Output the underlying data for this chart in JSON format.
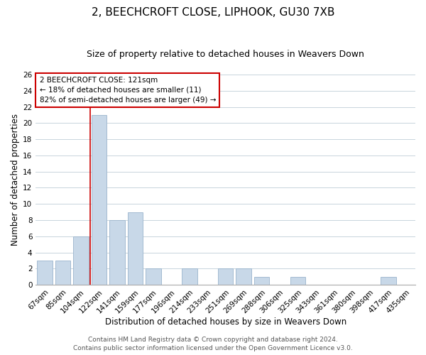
{
  "title": "2, BEECHCROFT CLOSE, LIPHOOK, GU30 7XB",
  "subtitle": "Size of property relative to detached houses in Weavers Down",
  "xlabel": "Distribution of detached houses by size in Weavers Down",
  "ylabel": "Number of detached properties",
  "bar_fill_color": "#c8d8e8",
  "bar_edge_color": "#9ab4cc",
  "bins": [
    "67sqm",
    "85sqm",
    "104sqm",
    "122sqm",
    "141sqm",
    "159sqm",
    "177sqm",
    "196sqm",
    "214sqm",
    "233sqm",
    "251sqm",
    "269sqm",
    "288sqm",
    "306sqm",
    "325sqm",
    "343sqm",
    "361sqm",
    "380sqm",
    "398sqm",
    "417sqm",
    "435sqm"
  ],
  "values": [
    3,
    3,
    6,
    21,
    8,
    9,
    2,
    0,
    2,
    0,
    2,
    2,
    1,
    0,
    1,
    0,
    0,
    0,
    0,
    1,
    0
  ],
  "ylim": [
    0,
    26
  ],
  "yticks": [
    0,
    2,
    4,
    6,
    8,
    10,
    12,
    14,
    16,
    18,
    20,
    22,
    24,
    26
  ],
  "property_line_color": "#cc0000",
  "property_line_index": 3,
  "annotation_text_line1": "2 BEECHCROFT CLOSE: 121sqm",
  "annotation_text_line2": "← 18% of detached houses are smaller (11)",
  "annotation_text_line3": "82% of semi-detached houses are larger (49) →",
  "footer_line1": "Contains HM Land Registry data © Crown copyright and database right 2024.",
  "footer_line2": "Contains public sector information licensed under the Open Government Licence v3.0.",
  "background_color": "#ffffff",
  "grid_color": "#c8d4dc",
  "title_fontsize": 11,
  "subtitle_fontsize": 9,
  "axis_label_fontsize": 8.5,
  "tick_fontsize": 7.5,
  "annotation_fontsize": 7.5,
  "footer_fontsize": 6.5
}
